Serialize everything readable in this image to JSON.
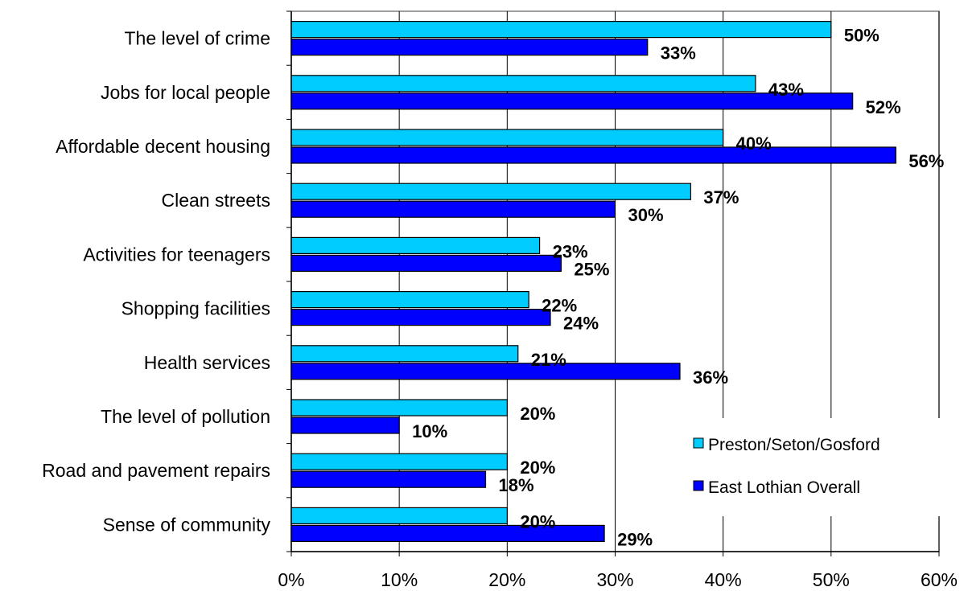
{
  "chart_data": {
    "type": "bar",
    "orientation": "horizontal",
    "categories": [
      "The level of crime",
      "Jobs for local people",
      "Affordable decent housing",
      "Clean streets",
      "Activities for teenagers",
      "Shopping facilities",
      "Health services",
      "The level of pollution",
      "Road and pavement repairs",
      "Sense of community"
    ],
    "series": [
      {
        "name": "Preston/Seton/Gosford",
        "color": "#00CCFF",
        "values": [
          50,
          43,
          40,
          37,
          23,
          22,
          21,
          20,
          20,
          20
        ],
        "labels": [
          "50%",
          "43%",
          "40%",
          "37%",
          "23%",
          "22%",
          "21%",
          "20%",
          "20%",
          "20%"
        ]
      },
      {
        "name": "East Lothian Overall",
        "color": "#0000FF",
        "values": [
          33,
          52,
          56,
          30,
          25,
          24,
          36,
          10,
          18,
          29
        ],
        "labels": [
          "33%",
          "52%",
          "56%",
          "30%",
          "25%",
          "24%",
          "36%",
          "10%",
          "18%",
          "29%"
        ]
      }
    ],
    "xlim": [
      0,
      60
    ],
    "x_ticks": [
      0,
      10,
      20,
      30,
      40,
      50,
      60
    ],
    "x_tick_labels": [
      "0%",
      "10%",
      "20%",
      "30%",
      "40%",
      "50%",
      "60%"
    ],
    "grid": "vertical",
    "legend_position": "bottom-right",
    "title": "",
    "xlabel": "",
    "ylabel": ""
  }
}
